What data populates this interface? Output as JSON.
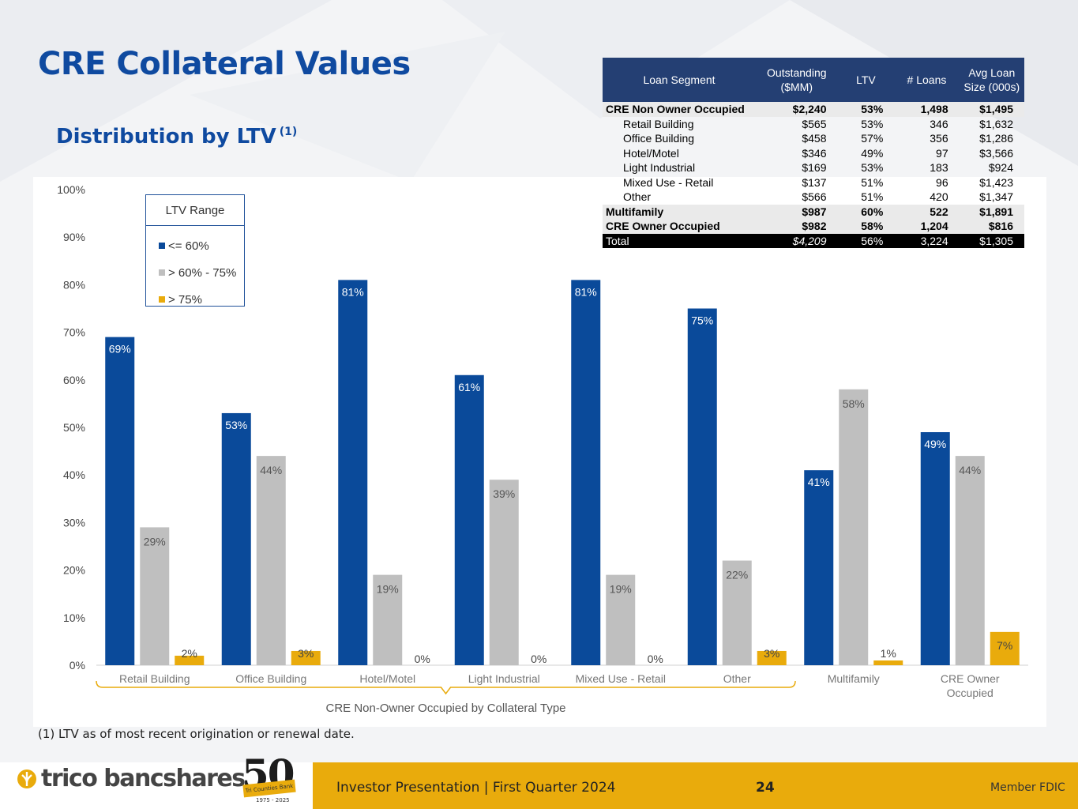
{
  "slide": {
    "title": "CRE Collateral Values",
    "subtitle": "Distribution by LTV",
    "subtitle_note": "(1)",
    "footnote": "(1)  LTV as of most recent origination or renewal date."
  },
  "footer": {
    "presentation": "Investor Presentation  |  First Quarter 2024",
    "page_number": "24",
    "member": "Member FDIC",
    "logo_text": "trico bancshares",
    "anniversary_number": "50",
    "anniversary_banner": "Tri Counties Bank",
    "anniversary_years": "1975 - 2025"
  },
  "legend": {
    "title": "LTV Range",
    "items": [
      {
        "label": "<= 60%",
        "color": "#0a4a9a"
      },
      {
        "label": "> 60% - 75%",
        "color": "#bfbfbf"
      },
      {
        "label": "> 75%",
        "color": "#e9ab0c"
      }
    ]
  },
  "table": {
    "headers": [
      "Loan Segment",
      "Outstanding ($MM)",
      "LTV",
      "# Loans",
      "Avg Loan Size (000s)"
    ],
    "rows": [
      {
        "cells": [
          "CRE Non Owner Occupied",
          "$2,240",
          "53%",
          "1,498",
          "$1,495"
        ],
        "style": "bold shade"
      },
      {
        "cells": [
          "Retail Building",
          "$565",
          "53%",
          "346",
          "$1,632"
        ],
        "style": "indent"
      },
      {
        "cells": [
          "Office Building",
          "$458",
          "57%",
          "356",
          "$1,286"
        ],
        "style": "indent"
      },
      {
        "cells": [
          "Hotel/Motel",
          "$346",
          "49%",
          "97",
          "$3,566"
        ],
        "style": "indent"
      },
      {
        "cells": [
          "Light Industrial",
          "$169",
          "53%",
          "183",
          "$924"
        ],
        "style": "indent"
      },
      {
        "cells": [
          "Mixed Use - Retail",
          "$137",
          "51%",
          "96",
          "$1,423"
        ],
        "style": "indent"
      },
      {
        "cells": [
          "Other",
          "$566",
          "51%",
          "420",
          "$1,347"
        ],
        "style": "indent"
      },
      {
        "cells": [
          "Multifamily",
          "$987",
          "60%",
          "522",
          "$1,891"
        ],
        "style": "bold shade"
      },
      {
        "cells": [
          "CRE Owner Occupied",
          "$982",
          "58%",
          "1,204",
          "$816"
        ],
        "style": "bold shade"
      },
      {
        "cells": [
          "Total",
          "$4,209",
          "56%",
          "3,224",
          "$1,305"
        ],
        "style": "total"
      }
    ]
  },
  "chart_data": {
    "type": "bar",
    "title": "Distribution by LTV",
    "categories": [
      "Retail Building",
      "Office Building",
      "Hotel/Motel",
      "Light Industrial",
      "Mixed Use - Retail",
      "Other",
      "Multifamily",
      "CRE Owner Occupied"
    ],
    "series": [
      {
        "name": "<= 60%",
        "color": "#0a4a9a",
        "values": [
          69,
          53,
          81,
          61,
          81,
          75,
          41,
          49
        ]
      },
      {
        "name": "> 60% - 75%",
        "color": "#bfbfbf",
        "values": [
          29,
          44,
          19,
          39,
          19,
          22,
          58,
          44
        ]
      },
      {
        "name": "> 75%",
        "color": "#e9ab0c",
        "values": [
          2,
          3,
          0,
          0,
          0,
          3,
          1,
          7
        ]
      }
    ],
    "ylim": [
      0,
      100
    ],
    "yticks": [
      0,
      10,
      20,
      30,
      40,
      50,
      60,
      70,
      80,
      90,
      100
    ],
    "tick_suffix": "%",
    "group_label": "CRE Non-Owner Occupied by Collateral Type",
    "grouped_categories": 6,
    "legend_position": "top-left"
  }
}
